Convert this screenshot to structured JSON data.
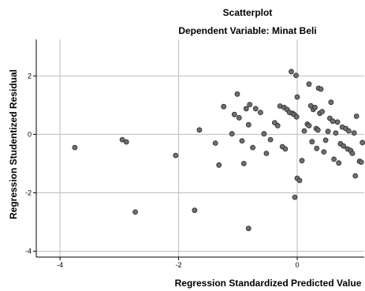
{
  "chart_data": {
    "type": "scatter",
    "title": "Scatterplot",
    "subtitle": "Dependent Variable: Minat Beli",
    "xlabel": "Regression Standardized Predicted Value",
    "ylabel": "Regression Studentized Residual",
    "xlim": [
      -4.4,
      1.13
    ],
    "ylim": [
      -4.2,
      3.25
    ],
    "xticks": [
      -4,
      -2,
      0
    ],
    "yticks": [
      2,
      0,
      -2,
      -4
    ],
    "grid": true,
    "point_color": "#6e6e6e",
    "points": [
      {
        "x": -3.75,
        "y": -0.45
      },
      {
        "x": -2.95,
        "y": -0.18
      },
      {
        "x": -2.88,
        "y": -0.26
      },
      {
        "x": -2.73,
        "y": -2.66
      },
      {
        "x": -2.05,
        "y": -0.72
      },
      {
        "x": -1.73,
        "y": -2.6
      },
      {
        "x": -1.65,
        "y": 0.15
      },
      {
        "x": -1.38,
        "y": -0.3
      },
      {
        "x": -1.32,
        "y": -1.05
      },
      {
        "x": -1.24,
        "y": 0.95
      },
      {
        "x": -1.1,
        "y": 0.02
      },
      {
        "x": -1.06,
        "y": 0.68
      },
      {
        "x": -1.01,
        "y": 1.38
      },
      {
        "x": -0.98,
        "y": 0.57
      },
      {
        "x": -0.93,
        "y": -0.22
      },
      {
        "x": -0.9,
        "y": -1.0
      },
      {
        "x": -0.86,
        "y": 0.88
      },
      {
        "x": -0.82,
        "y": 0.33
      },
      {
        "x": -0.8,
        "y": 1.02
      },
      {
        "x": -0.82,
        "y": -3.22
      },
      {
        "x": -0.75,
        "y": -0.45
      },
      {
        "x": -0.7,
        "y": 0.88
      },
      {
        "x": -0.62,
        "y": 0.75
      },
      {
        "x": -0.56,
        "y": 0.02
      },
      {
        "x": -0.52,
        "y": -0.65
      },
      {
        "x": -0.45,
        "y": -0.18
      },
      {
        "x": -0.38,
        "y": 0.4
      },
      {
        "x": -0.33,
        "y": 0.3
      },
      {
        "x": -0.29,
        "y": 0.97
      },
      {
        "x": -0.25,
        "y": -0.42
      },
      {
        "x": -0.22,
        "y": 0.92
      },
      {
        "x": -0.2,
        "y": -0.5
      },
      {
        "x": -0.17,
        "y": 0.85
      },
      {
        "x": -0.13,
        "y": 0.75
      },
      {
        "x": -0.1,
        "y": 2.15
      },
      {
        "x": -0.08,
        "y": 0.72
      },
      {
        "x": -0.05,
        "y": 0.68
      },
      {
        "x": -0.04,
        "y": -2.15
      },
      {
        "x": -0.02,
        "y": 2.02
      },
      {
        "x": -0.01,
        "y": 0.6
      },
      {
        "x": 0.0,
        "y": 1.28
      },
      {
        "x": 0.0,
        "y": -1.5
      },
      {
        "x": 0.04,
        "y": -1.58
      },
      {
        "x": 0.08,
        "y": -0.9
      },
      {
        "x": 0.12,
        "y": 0.12
      },
      {
        "x": 0.17,
        "y": 0.35
      },
      {
        "x": 0.2,
        "y": 0.3
      },
      {
        "x": 0.2,
        "y": 1.72
      },
      {
        "x": 0.23,
        "y": 0.98
      },
      {
        "x": 0.25,
        "y": -0.25
      },
      {
        "x": 0.27,
        "y": 0.85
      },
      {
        "x": 0.3,
        "y": 0.92
      },
      {
        "x": 0.32,
        "y": 0.2
      },
      {
        "x": 0.33,
        "y": -0.48
      },
      {
        "x": 0.35,
        "y": 0.15
      },
      {
        "x": 0.36,
        "y": 1.58
      },
      {
        "x": 0.38,
        "y": 0.72
      },
      {
        "x": 0.4,
        "y": 1.55
      },
      {
        "x": 0.42,
        "y": 0.78
      },
      {
        "x": 0.45,
        "y": -0.6
      },
      {
        "x": 0.48,
        "y": -0.2
      },
      {
        "x": 0.52,
        "y": 0.1
      },
      {
        "x": 0.55,
        "y": 0.55
      },
      {
        "x": 0.57,
        "y": 1.1
      },
      {
        "x": 0.6,
        "y": 0.45
      },
      {
        "x": 0.62,
        "y": -0.85
      },
      {
        "x": 0.65,
        "y": 0.05
      },
      {
        "x": 0.68,
        "y": 0.42
      },
      {
        "x": 0.7,
        "y": -0.98
      },
      {
        "x": 0.73,
        "y": -0.32
      },
      {
        "x": 0.76,
        "y": 0.25
      },
      {
        "x": 0.78,
        "y": -0.4
      },
      {
        "x": 0.82,
        "y": 0.2
      },
      {
        "x": 0.85,
        "y": -0.5
      },
      {
        "x": 0.87,
        "y": 0.12
      },
      {
        "x": 0.9,
        "y": -0.55
      },
      {
        "x": 0.93,
        "y": -0.65
      },
      {
        "x": 0.96,
        "y": 0.05
      },
      {
        "x": 0.98,
        "y": -1.42
      },
      {
        "x": 1.0,
        "y": 0.62
      },
      {
        "x": 1.05,
        "y": -0.92
      },
      {
        "x": 1.08,
        "y": -0.95
      },
      {
        "x": 1.1,
        "y": -0.28
      }
    ]
  }
}
